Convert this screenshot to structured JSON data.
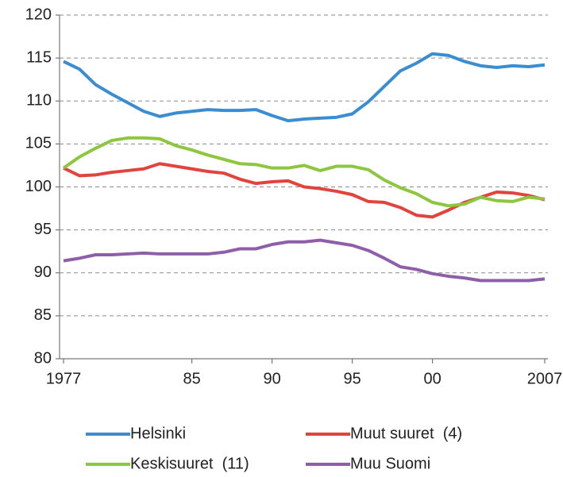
{
  "chart_data": {
    "type": "line",
    "x": [
      1977,
      1978,
      1979,
      1980,
      1981,
      1982,
      1983,
      1984,
      1985,
      1986,
      1987,
      1988,
      1989,
      1990,
      1991,
      1992,
      1993,
      1994,
      1995,
      1996,
      1997,
      1998,
      1999,
      2000,
      2001,
      2002,
      2003,
      2004,
      2005,
      2006,
      2007
    ],
    "xlim": [
      1977,
      2007
    ],
    "xticks": [
      1977,
      {
        "value": 1985,
        "label": "85"
      },
      {
        "value": 1990,
        "label": "90"
      },
      {
        "value": 1995,
        "label": "95"
      },
      {
        "value": 2000,
        "label": "00"
      },
      2007
    ],
    "ylim": [
      80,
      120
    ],
    "yticks": [
      80,
      85,
      90,
      95,
      100,
      105,
      110,
      115,
      120
    ],
    "grid": true,
    "legend": "bottom",
    "series": [
      {
        "name": "Helsinki",
        "color": "#3a8dd0",
        "values": [
          114.6,
          113.7,
          111.9,
          110.8,
          109.8,
          108.8,
          108.2,
          108.6,
          108.8,
          109.0,
          108.9,
          108.9,
          109.0,
          108.3,
          107.7,
          107.9,
          108.0,
          108.1,
          108.5,
          109.9,
          111.7,
          113.5,
          114.4,
          115.5,
          115.3,
          114.6,
          114.1,
          113.9,
          114.1,
          114.0,
          114.2
        ]
      },
      {
        "name": "Muut suuret  (4)",
        "color": "#e0443c",
        "values": [
          102.2,
          101.3,
          101.4,
          101.7,
          101.9,
          102.1,
          102.7,
          102.4,
          102.1,
          101.8,
          101.6,
          100.9,
          100.4,
          100.6,
          100.7,
          100.0,
          99.8,
          99.5,
          99.1,
          98.3,
          98.2,
          97.6,
          96.7,
          96.5,
          97.3,
          98.2,
          98.8,
          99.4,
          99.3,
          99.0,
          98.5
        ]
      },
      {
        "name": "Keskisuuret  (11)",
        "color": "#8dc63f",
        "values": [
          102.2,
          103.5,
          104.5,
          105.4,
          105.7,
          105.7,
          105.6,
          104.8,
          104.3,
          103.7,
          103.2,
          102.7,
          102.6,
          102.2,
          102.2,
          102.5,
          101.9,
          102.4,
          102.4,
          102.0,
          100.8,
          99.9,
          99.2,
          98.2,
          97.8,
          98.0,
          98.8,
          98.4,
          98.3,
          98.8,
          98.6
        ]
      },
      {
        "name": "Muu Suomi",
        "color": "#8e5fa8",
        "values": [
          91.4,
          91.7,
          92.1,
          92.1,
          92.2,
          92.3,
          92.2,
          92.2,
          92.2,
          92.2,
          92.4,
          92.8,
          92.8,
          93.3,
          93.6,
          93.6,
          93.8,
          93.5,
          93.2,
          92.6,
          91.7,
          90.7,
          90.4,
          89.9,
          89.6,
          89.4,
          89.1,
          89.1,
          89.1,
          89.1,
          89.3
        ]
      }
    ]
  }
}
